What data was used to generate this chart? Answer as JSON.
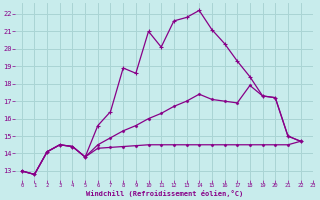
{
  "xlabel": "Windchill (Refroidissement éolien,°C)",
  "bg_color": "#c8ecec",
  "grid_color": "#aad4d4",
  "line_color": "#880088",
  "xlim": [
    -0.5,
    23
  ],
  "ylim": [
    12.5,
    22.6
  ],
  "xticks": [
    0,
    1,
    2,
    3,
    4,
    5,
    6,
    7,
    8,
    9,
    10,
    11,
    12,
    13,
    14,
    15,
    16,
    17,
    18,
    19,
    20,
    21,
    22,
    23
  ],
  "yticks": [
    13,
    14,
    15,
    16,
    17,
    18,
    19,
    20,
    21,
    22
  ],
  "l1_y": [
    13.0,
    12.8,
    14.1,
    14.5,
    14.4,
    13.8,
    15.6,
    16.4,
    18.9,
    18.6,
    21.0,
    20.1,
    21.6,
    21.8,
    22.2,
    21.1,
    20.3,
    19.3,
    18.4,
    17.3,
    17.2,
    15.0,
    14.7
  ],
  "l2_y": [
    13.0,
    12.8,
    14.1,
    14.5,
    14.4,
    13.8,
    14.5,
    14.9,
    15.3,
    15.6,
    16.0,
    16.3,
    16.7,
    17.0,
    17.4,
    17.1,
    17.0,
    16.9,
    17.9,
    17.3,
    17.2,
    15.0,
    14.7
  ],
  "l3_y": [
    13.0,
    12.8,
    14.1,
    14.5,
    14.4,
    13.8,
    14.3,
    14.35,
    14.4,
    14.45,
    14.5,
    14.5,
    14.5,
    14.5,
    14.5,
    14.5,
    14.5,
    14.5,
    14.5,
    14.5,
    14.5,
    14.5,
    14.7
  ]
}
